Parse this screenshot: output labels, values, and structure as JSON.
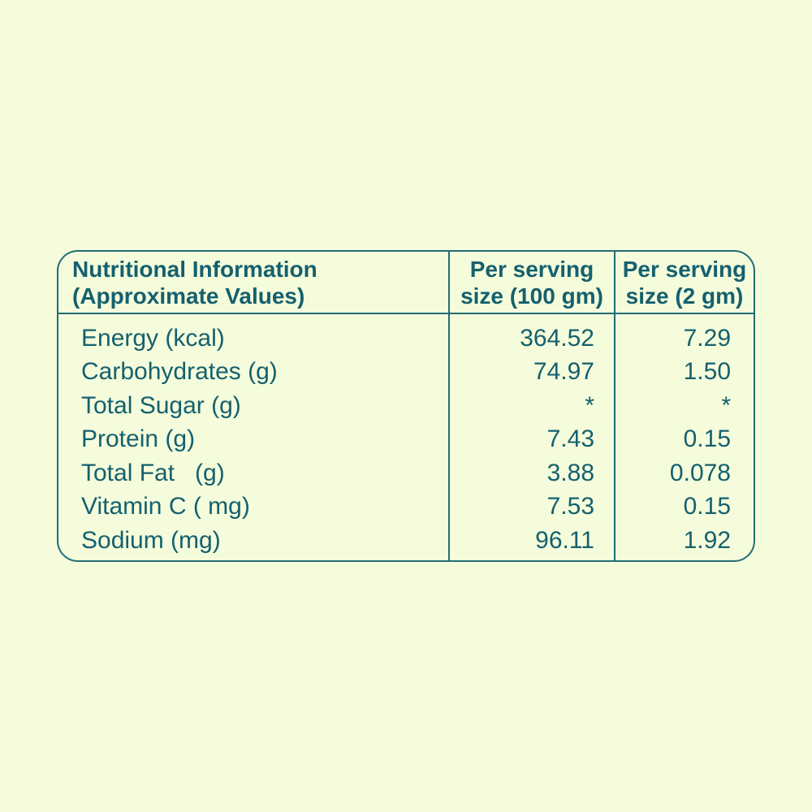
{
  "colors": {
    "background": "#f4fcdb",
    "text_teal": "#15606f",
    "border_teal": "#226c76"
  },
  "table": {
    "header": {
      "col1": {
        "line1": "Nutritional Information",
        "line2": "(Approximate Values)"
      },
      "col2": {
        "line1": "Per serving",
        "line2": "size (100 gm)"
      },
      "col3": {
        "line1": "Per serving",
        "line2": "size (2 gm)"
      }
    },
    "rows": [
      {
        "label": "Energy (kcal)",
        "per_100gm": "364.52",
        "per_2gm": "7.29"
      },
      {
        "label": "Carbohydrates (g)",
        "per_100gm": "74.97",
        "per_2gm": "1.50"
      },
      {
        "label": "Total Sugar (g)",
        "per_100gm": "*",
        "per_2gm": "*"
      },
      {
        "label": "Protein (g)",
        "per_100gm": "7.43",
        "per_2gm": "0.15"
      },
      {
        "label": "Total Fat   (g)",
        "per_100gm": "3.88",
        "per_2gm": "0.078"
      },
      {
        "label": "Vitamin C ( mg)",
        "per_100gm": "7.53",
        "per_2gm": "0.15"
      },
      {
        "label": "Sodium (mg)",
        "per_100gm": "96.11",
        "per_2gm": "1.92"
      }
    ]
  }
}
